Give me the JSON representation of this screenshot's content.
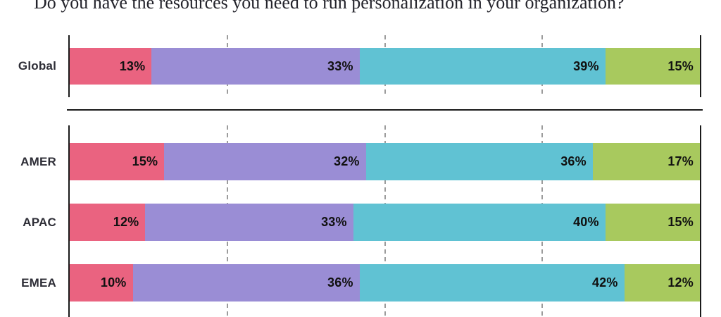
{
  "title": "Do you have the resources you need to run personalization in your organization?",
  "colors": {
    "series_1": "#EA6380",
    "series_2": "#9A8DD5",
    "series_3": "#60C2D3",
    "series_4": "#A8C95E",
    "axis": "#1a1a1a",
    "gridline": "#9c9c9c",
    "separator": "#1a1a1a",
    "category_text": "#2d2d36",
    "value_text": "#111111",
    "background": "#ffffff"
  },
  "chart_data": {
    "type": "bar",
    "subtype": "horizontal-stacked",
    "title": "Do you have the resources you need to run personalization in your organization?",
    "categories": [
      "Global",
      "AMER",
      "APAC",
      "EMEA"
    ],
    "row_groups": [
      [
        "Global"
      ],
      [
        "AMER",
        "APAC",
        "EMEA"
      ]
    ],
    "series": [
      {
        "name": "segment-1",
        "color": "#EA6380",
        "values": [
          13,
          15,
          12,
          10
        ]
      },
      {
        "name": "segment-2",
        "color": "#9A8DD5",
        "values": [
          33,
          32,
          33,
          36
        ]
      },
      {
        "name": "segment-3",
        "color": "#60C2D3",
        "values": [
          39,
          36,
          40,
          42
        ]
      },
      {
        "name": "segment-4",
        "color": "#A8C95E",
        "values": [
          15,
          17,
          15,
          12
        ]
      }
    ],
    "value_suffix": "%",
    "xlim": [
      0,
      100
    ],
    "gridlines": [
      25,
      50,
      75
    ],
    "grid_style": "dashed",
    "legend": "none",
    "value_labels": "inside-right"
  }
}
